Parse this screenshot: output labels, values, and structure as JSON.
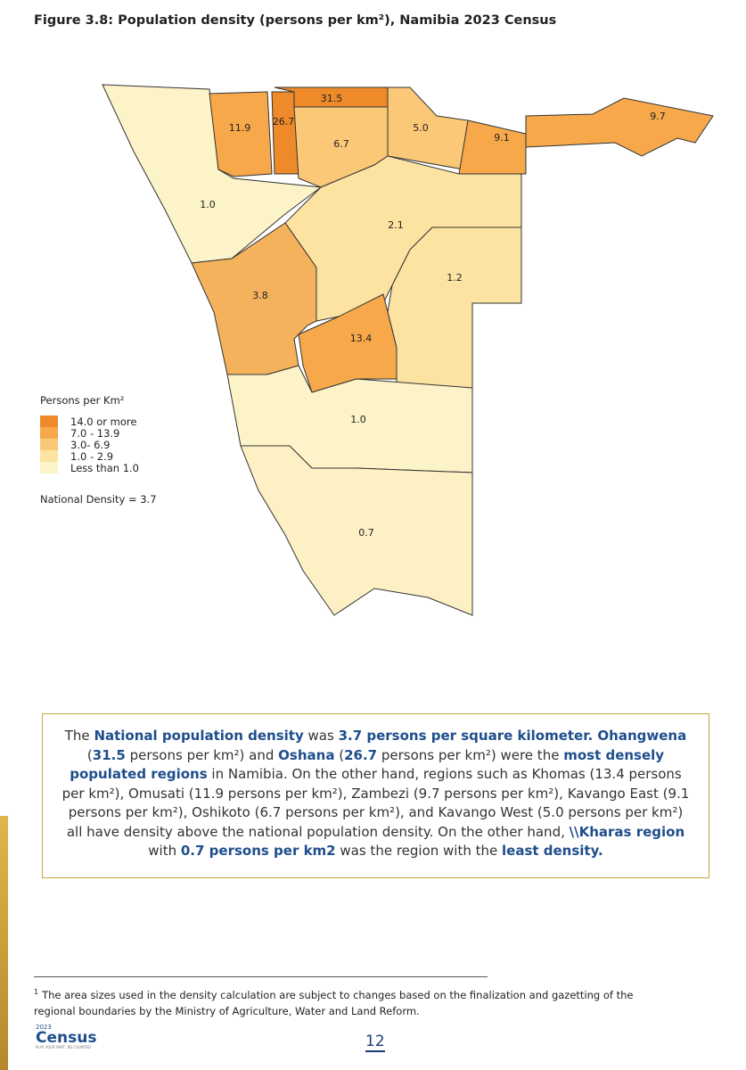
{
  "figure": {
    "title": "Figure 3.8: Population density (persons per km²), Namibia 2023 Census",
    "region_labels": [
      "31.5",
      "26.7",
      "11.9",
      "6.7",
      "5.0",
      "9.1",
      "9.7",
      "1.0",
      "2.1",
      "1.2",
      "3.8",
      "13.4",
      "1.0",
      "0.7"
    ]
  },
  "legend": {
    "title": "Persons per Km²",
    "items": [
      {
        "label": "14.0 or more",
        "color": "#ef8a2a"
      },
      {
        "label": "7.0 - 13.9",
        "color": "#f6a84b"
      },
      {
        "label": "3.0- 6.9",
        "color": "#fbc878"
      },
      {
        "label": "1.0 - 2.9",
        "color": "#fde3a2"
      },
      {
        "label": "Less than 1.0",
        "color": "#fdf3c8"
      }
    ],
    "note": "National Density = 3.7"
  },
  "text_box": {
    "segments": [
      {
        "text": "The "
      },
      {
        "text": "National population density",
        "emphasis": true
      },
      {
        "text": "  was "
      },
      {
        "text": "3.7 persons per square kilometer. Ohangwena",
        "emphasis": true
      },
      {
        "text": " ("
      },
      {
        "text": "31.5",
        "emphasis": true
      },
      {
        "text": " persons per km²) and "
      },
      {
        "text": "Oshana",
        "emphasis": true
      },
      {
        "text": " ("
      },
      {
        "text": "26.7",
        "emphasis": true
      },
      {
        "text": " persons per km²) were the "
      },
      {
        "text": "most densely populated regions",
        "emphasis": true
      },
      {
        "text": " in Namibia. On the other hand, regions such as Khomas (13.4 persons per km²), Omusati (11.9 persons per km²), Zambezi (9.7 persons per km²), Kavango East (9.1 persons per km²), Oshikoto (6.7 persons per km²), and Kavango West (5.0 persons per km²) all have density above the national population density. On the other hand, "
      },
      {
        "text": "\\\\Kharas region",
        "emphasis": true
      },
      {
        "text": " with "
      },
      {
        "text": "0.7 persons per km2",
        "emphasis": true
      },
      {
        "text": " was the region with the "
      },
      {
        "text": "least density.",
        "emphasis": true
      }
    ]
  },
  "footnote": {
    "marker": "1",
    "text": "The area sizes used in the density calculation are subject to changes based on the finalization and gazetting of the regional boundaries by the Ministry of Agriculture, Water and Land Reform."
  },
  "page_number": "12",
  "logo": {
    "year": "2023",
    "name": "Census",
    "tagline": "PLAY YOUR PART, BE COUNTED"
  }
}
